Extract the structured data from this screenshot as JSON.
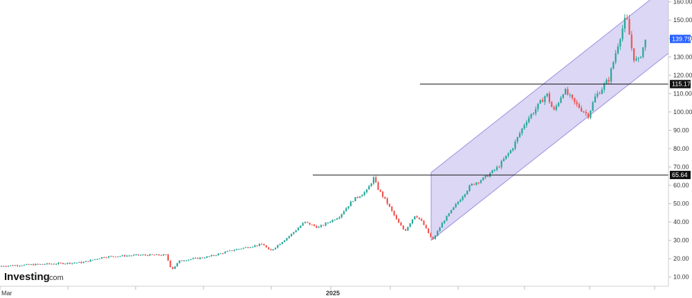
{
  "brand": {
    "name": "Investing",
    "suffix": ".com"
  },
  "chart_data": {
    "type": "candlestick",
    "title": "",
    "xlabel": "",
    "ylabel": "",
    "ylim": [
      5,
      161
    ],
    "y_ticks": [
      10,
      20,
      30,
      40,
      50,
      60,
      70,
      80,
      90,
      100,
      110,
      120,
      130,
      140,
      150,
      160
    ],
    "y_tick_labels": [
      "10.00",
      "20.00",
      "30.00",
      "40.00",
      "50.00",
      "60.00",
      "70.00",
      "80.00",
      "90.00",
      "100.00",
      "110.00",
      "120.00",
      "130.00",
      "140.00",
      "150.00",
      "160.00"
    ],
    "x_tick_labels": [
      {
        "label": "Mar",
        "bold": false
      },
      {
        "label": "2025",
        "bold": true
      }
    ],
    "grid": false,
    "current_price": {
      "value": 139.79,
      "label": "139.79",
      "color": "#2962ff"
    },
    "horizontal_levels": [
      {
        "value": 115.17,
        "label": "115.17",
        "color": "#111111"
      },
      {
        "value": 65.64,
        "label": "65.64",
        "color": "#111111"
      }
    ],
    "channel": {
      "fill": "#cfc9f0",
      "stroke": "#9b8fe0",
      "lower_start": 30,
      "lower_end": 132,
      "upper_start": 67,
      "upper_end": 169
    },
    "colors": {
      "up": "#26a69a",
      "down": "#ef5350"
    },
    "price_path": [
      [
        0,
        16
      ],
      [
        60,
        17
      ],
      [
        120,
        18
      ],
      [
        150,
        21
      ],
      [
        200,
        22
      ],
      [
        240,
        22
      ],
      [
        248,
        14
      ],
      [
        260,
        19
      ],
      [
        300,
        21
      ],
      [
        340,
        25
      ],
      [
        380,
        28
      ],
      [
        390,
        24
      ],
      [
        420,
        33
      ],
      [
        440,
        40
      ],
      [
        460,
        37
      ],
      [
        490,
        43
      ],
      [
        510,
        52
      ],
      [
        530,
        57
      ],
      [
        540,
        64
      ],
      [
        545,
        59
      ],
      [
        560,
        50
      ],
      [
        575,
        40
      ],
      [
        585,
        35
      ],
      [
        600,
        44
      ],
      [
        610,
        40
      ],
      [
        625,
        30
      ],
      [
        640,
        40
      ],
      [
        660,
        50
      ],
      [
        680,
        60
      ],
      [
        700,
        64
      ],
      [
        720,
        70
      ],
      [
        740,
        80
      ],
      [
        760,
        95
      ],
      [
        775,
        102
      ],
      [
        790,
        110
      ],
      [
        800,
        100
      ],
      [
        815,
        112
      ],
      [
        830,
        105
      ],
      [
        850,
        98
      ],
      [
        860,
        108
      ],
      [
        880,
        118
      ],
      [
        895,
        140
      ],
      [
        905,
        152
      ],
      [
        915,
        130
      ],
      [
        922,
        127
      ],
      [
        930,
        136
      ],
      [
        934,
        140
      ]
    ]
  }
}
